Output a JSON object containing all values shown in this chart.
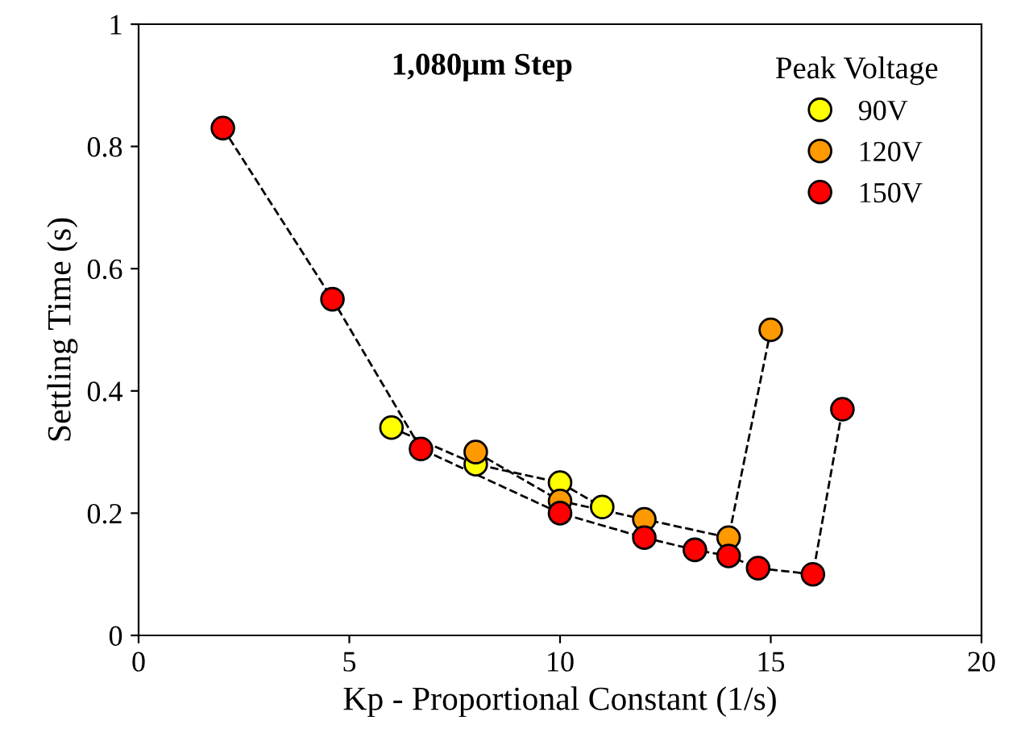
{
  "chart_data": {
    "type": "line",
    "xlabel": "Kp - Proportional Constant (1/s)",
    "ylabel": "Settling Time (s)",
    "legend_title": "Peak Voltage",
    "annotations": [
      "1,080μm Step"
    ],
    "xlim": [
      0,
      20
    ],
    "xticks": [
      0,
      5,
      10,
      15,
      20
    ],
    "ylim": [
      0,
      1
    ],
    "yticks": [
      0,
      0.2,
      0.4,
      0.6,
      0.8,
      1
    ],
    "grid": false,
    "legend": "top right",
    "marker": "circle",
    "line_style": "dashed",
    "series": [
      {
        "name": "90V",
        "color": "#ffff00",
        "x": [
          6,
          8,
          10,
          11
        ],
        "values": [
          0.34,
          0.28,
          0.25,
          0.21
        ]
      },
      {
        "name": "120V",
        "color": "#ff9900",
        "x": [
          8,
          10,
          12,
          14,
          15
        ],
        "values": [
          0.3,
          0.22,
          0.19,
          0.16,
          0.5
        ]
      },
      {
        "name": "150V",
        "color": "#ff0000",
        "x": [
          2,
          4.6,
          6.7,
          10,
          12,
          13.2,
          14,
          14.7,
          16,
          16.7
        ],
        "values": [
          0.83,
          0.55,
          0.305,
          0.2,
          0.16,
          0.14,
          0.13,
          0.11,
          0.1,
          0.37
        ]
      }
    ]
  }
}
